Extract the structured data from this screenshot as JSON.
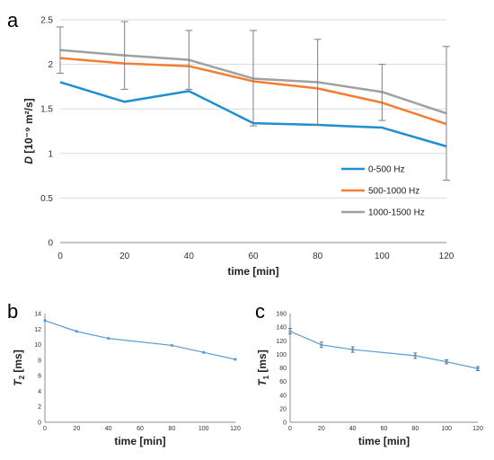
{
  "chart_data": [
    {
      "panel": "a",
      "type": "line",
      "x": [
        0,
        20,
        40,
        60,
        80,
        100,
        120
      ],
      "xlabel": "time [min]",
      "ylabel_italic": "D",
      "ylabel_rest": " [10⁻⁹ m²/s]",
      "xlim": [
        0,
        120
      ],
      "ylim": [
        0,
        2.5
      ],
      "xticks": [
        "0",
        "20",
        "40",
        "60",
        "80",
        "100",
        "120"
      ],
      "yticks": [
        "0",
        "0.5",
        "1",
        "1.5",
        "2",
        "2.5"
      ],
      "legend_position": "center-right",
      "series": [
        {
          "name": "0-500 Hz",
          "color": "#1f8fcf",
          "values": [
            1.8,
            1.58,
            1.7,
            1.34,
            1.32,
            1.29,
            1.08
          ]
        },
        {
          "name": "500-1000 Hz",
          "color": "#f47c33",
          "values": [
            2.07,
            2.01,
            1.98,
            1.81,
            1.73,
            1.57,
            1.33
          ]
        },
        {
          "name": "1000-1500 Hz",
          "color": "#a0a0a0",
          "values": [
            2.16,
            2.1,
            2.05,
            1.84,
            1.8,
            1.69,
            1.45
          ],
          "error_low": [
            1.9,
            1.72,
            1.72,
            1.31,
            1.32,
            1.37,
            0.7
          ],
          "error_high": [
            2.42,
            2.48,
            2.38,
            2.38,
            2.28,
            2.0,
            2.2
          ]
        }
      ]
    },
    {
      "panel": "b",
      "type": "line",
      "x": [
        0,
        20,
        40,
        80,
        100,
        120
      ],
      "values": [
        13.1,
        11.7,
        10.8,
        9.9,
        9.0,
        8.1
      ],
      "color": "#5b9bd5",
      "xlabel": "time [min]",
      "ylabel_italic": "T",
      "ylabel_sub": "2",
      "ylabel_rest": " [ms]",
      "xlim": [
        0,
        120
      ],
      "ylim": [
        0,
        14
      ],
      "xticks": [
        "0",
        "20",
        "40",
        "60",
        "80",
        "100",
        "120"
      ],
      "yticks": [
        "0",
        "2",
        "4",
        "6",
        "8",
        "10",
        "12",
        "14"
      ]
    },
    {
      "panel": "c",
      "type": "line",
      "x": [
        0,
        20,
        40,
        80,
        100,
        120
      ],
      "values": [
        134,
        114,
        107,
        98,
        89,
        79
      ],
      "error": [
        4,
        4,
        4,
        4,
        3,
        3
      ],
      "color": "#5b9bd5",
      "xlabel": "time [min]",
      "ylabel_italic": "T",
      "ylabel_sub": "1",
      "ylabel_rest": " [ms]",
      "xlim": [
        0,
        120
      ],
      "ylim": [
        0,
        160
      ],
      "xticks": [
        "0",
        "20",
        "40",
        "60",
        "80",
        "100",
        "120"
      ],
      "yticks": [
        "0",
        "20",
        "40",
        "60",
        "80",
        "100",
        "120",
        "140",
        "160"
      ]
    }
  ]
}
